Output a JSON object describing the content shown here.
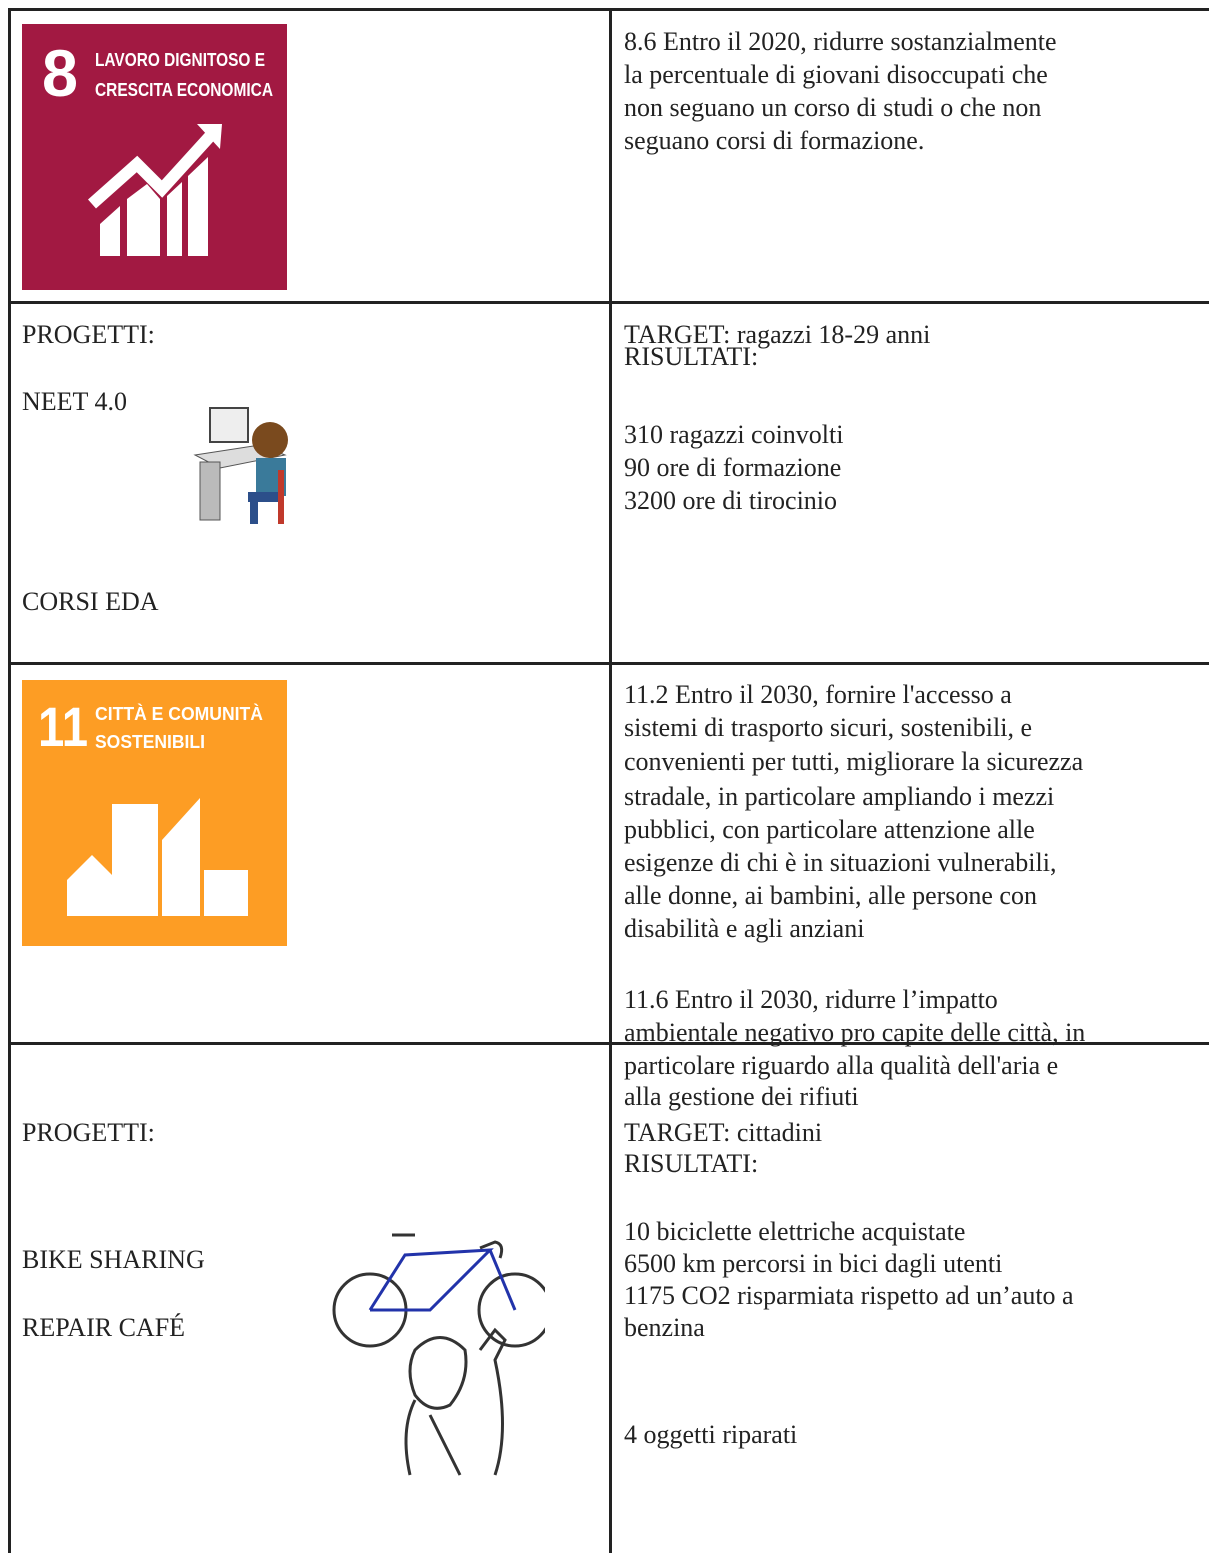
{
  "rows": [
    {
      "icon": {
        "number": "8",
        "label": [
          "LAVORO DIGNITOSO E",
          "CRESCITA ECONOMICA"
        ]
      },
      "text": [
        "8.6 Entro il 2020, ridurre sostanzialmente",
        "la percentuale di giovani disoccupati che",
        "non seguano un corso di studi o che non",
        "seguano corsi di formazione."
      ]
    },
    {
      "left": [
        "PROGETTI:",
        "NEET 4.0",
        "CORSI EDA"
      ],
      "right": [
        "TARGET: ragazzi 18-29 anni",
        "RISULTATI:",
        "310 ragazzi coinvolti",
        "90 ore di formazione",
        "3200 ore di tirocinio"
      ]
    },
    {
      "icon": {
        "number": "11",
        "label": [
          "CITTÀ E COMUNITÀ",
          "SOSTENIBILI"
        ]
      },
      "text": [
        "11.2 Entro il 2030, fornire l'accesso a",
        "sistemi di trasporto sicuri, sostenibili, e",
        "convenienti per tutti, migliorare la sicurezza",
        "stradale, in particolare ampliando i mezzi",
        "pubblici, con particolare attenzione alle",
        "esigenze di chi è in situazioni vulnerabili,",
        "alle donne, ai bambini, alle persone con",
        "disabilità e agli anziani",
        "11.6 Entro il 2030, ridurre l’impatto",
        "ambientale negativo pro capite delle città, in",
        "particolare riguardo alla qualità dell'aria e",
        "alla gestione dei rifiuti"
      ]
    },
    {
      "left": [
        "PROGETTI:",
        "BIKE SHARING",
        "REPAIR CAFÉ"
      ],
      "right": [
        "TARGET: cittadini",
        "RISULTATI:",
        "10 biciclette elettriche acquistate",
        "6500 km percorsi in bici dagli utenti",
        "1175 CO2 risparmiata rispetto ad un’auto a",
        "benzina",
        "4 oggetti riparati"
      ]
    }
  ]
}
